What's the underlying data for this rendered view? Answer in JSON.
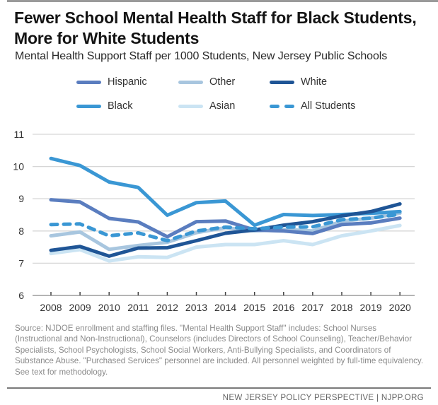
{
  "title": "Fewer School Mental Health Staff for Black Students, More for White Students",
  "subtitle": "Mental Health Support Staff per 1000 Students, New Jersey Public Schools",
  "legend": [
    {
      "name": "Hispanic",
      "color": "#5a7dbf",
      "style": "solid"
    },
    {
      "name": "Other",
      "color": "#a8c6df",
      "style": "solid"
    },
    {
      "name": "White",
      "color": "#1f5596",
      "style": "solid"
    },
    {
      "name": "Black",
      "color": "#3a97d4",
      "style": "solid"
    },
    {
      "name": "Asian",
      "color": "#cbe4f3",
      "style": "solid"
    },
    {
      "name": "All Students",
      "color": "#3a97d4",
      "style": "dashed"
    }
  ],
  "chart_data": {
    "type": "line",
    "title": "Fewer School Mental Health Staff for Black Students, More for White Students",
    "subtitle": "Mental Health Support Staff per 1000 Students, New Jersey Public Schools",
    "xlabel": "",
    "ylabel": "",
    "x": [
      "2008",
      "2009",
      "2010",
      "2011",
      "2012",
      "2013",
      "2014",
      "2015",
      "2016",
      "2017",
      "2018",
      "2019",
      "2020"
    ],
    "ylim": [
      6,
      11
    ],
    "yticks": [
      "6",
      "7",
      "8",
      "9",
      "10",
      "11"
    ],
    "grid": true,
    "legend_position": "top",
    "series": [
      {
        "name": "Asian",
        "color": "#cbe4f3",
        "style": "solid",
        "values": [
          7.3,
          7.42,
          7.07,
          7.2,
          7.18,
          7.5,
          7.58,
          7.58,
          7.7,
          7.58,
          7.85,
          8.0,
          8.17
        ]
      },
      {
        "name": "Other",
        "color": "#a8c6df",
        "style": "solid",
        "values": [
          7.85,
          7.97,
          7.43,
          7.55,
          7.65,
          7.95,
          8.1,
          8.0,
          8.05,
          8.0,
          8.3,
          8.4,
          8.55
        ]
      },
      {
        "name": "Hispanic",
        "color": "#5a7dbf",
        "style": "solid",
        "values": [
          8.97,
          8.9,
          8.39,
          8.28,
          7.82,
          8.29,
          8.31,
          8.03,
          8.0,
          7.92,
          8.2,
          8.25,
          8.4
        ]
      },
      {
        "name": "Black",
        "color": "#3a97d4",
        "style": "solid",
        "values": [
          10.25,
          10.03,
          9.52,
          9.35,
          8.49,
          8.88,
          8.93,
          8.18,
          8.51,
          8.48,
          8.51,
          8.55,
          8.6
        ]
      },
      {
        "name": "White",
        "color": "#1f5596",
        "style": "solid",
        "values": [
          7.4,
          7.52,
          7.22,
          7.47,
          7.48,
          7.7,
          7.93,
          8.03,
          8.18,
          8.29,
          8.47,
          8.6,
          8.84
        ]
      },
      {
        "name": "All Students",
        "color": "#3a97d4",
        "style": "dashed",
        "values": [
          8.2,
          8.22,
          7.85,
          7.94,
          7.7,
          8.0,
          8.12,
          8.07,
          8.12,
          8.13,
          8.35,
          8.4,
          8.52
        ]
      }
    ]
  },
  "source": "Source: NJDOE enrollment and staffing files. \"Mental Health Support Staff\" includes: School Nurses (Instructional and Non-Instructional), Counselors (includes Directors of School Counseling), Teacher/Behavior Specialists, School Psychologists, School Social Workers, Anti-Bullying Specialists, and Coordinators of Substance Abuse. \"Purchased Services\" personnel are included. All personnel weighted by full-time equivalency. See text for methodology.",
  "footer": "NEW JERSEY POLICY PERSPECTIVE | NJPP.ORG"
}
